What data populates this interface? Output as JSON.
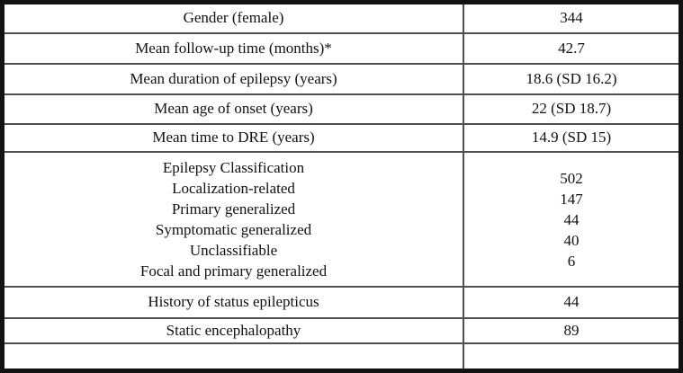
{
  "table": {
    "description": "Patient characteristics summary table",
    "columns": [
      "characteristic",
      "value"
    ],
    "rows": [
      {
        "label": "Gender (female)",
        "value": "344"
      },
      {
        "label": "Mean follow-up time (months)*",
        "value": "42.7"
      },
      {
        "label": "Mean duration of epilepsy (years)",
        "value": "18.6 (SD 16.2)"
      },
      {
        "label": "Mean age of onset (years)",
        "value": "22 (SD 18.7)"
      },
      {
        "label": "Mean time to DRE (years)",
        "value": "14.9 (SD 15)"
      },
      {
        "label_lines": [
          "Epilepsy Classification",
          "Localization-related",
          "Primary generalized",
          "Symptomatic generalized",
          "Unclassifiable",
          "Focal and primary generalized"
        ],
        "value_lines": [
          "502",
          "147",
          "44",
          "40",
          "6"
        ]
      },
      {
        "label": "History of status epilepticus",
        "value": "44"
      },
      {
        "label": "Static encephalopathy",
        "value": "89"
      },
      {
        "label": "",
        "value": ""
      }
    ],
    "colors": {
      "outer_border": "#121212",
      "grid_line": "#4f4f4f",
      "text": "#111111",
      "background": "#ffffff"
    }
  }
}
